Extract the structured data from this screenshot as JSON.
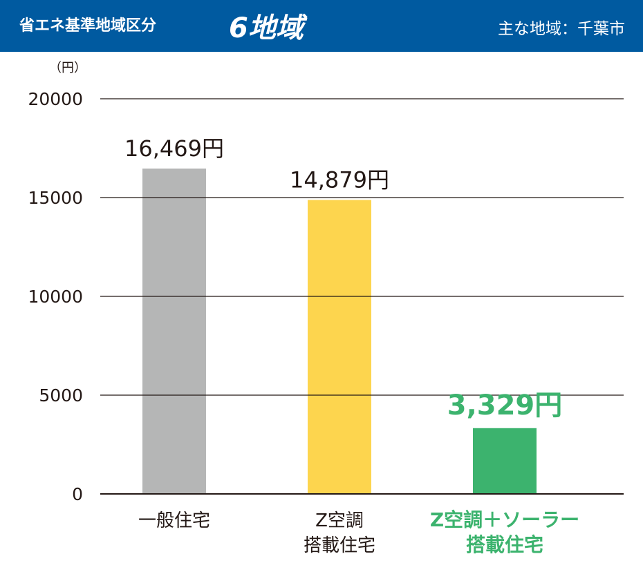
{
  "header": {
    "title": "省エネ基準地域区分",
    "region": "6地域",
    "area": "主な地域：千葉市"
  },
  "chart_data": {
    "type": "bar",
    "ylabel": "（円）",
    "ylim": [
      0,
      20000
    ],
    "yticks": [
      "0",
      "5000",
      "10000",
      "15000",
      "20000"
    ],
    "categories": [
      {
        "lines": [
          "一般住宅"
        ],
        "color": "#b5b6b6",
        "label_color": "#231815"
      },
      {
        "lines": [
          "Z空調",
          "搭載住宅"
        ],
        "color": "#fdd54e",
        "label_color": "#231815"
      },
      {
        "lines": [
          "Z空調＋ソーラー",
          "搭載住宅"
        ],
        "color": "#3cb36e",
        "label_color": "#3cb36e"
      }
    ],
    "values": [
      16469,
      14879,
      3329
    ],
    "value_labels": [
      "16,469円",
      "14,879円",
      "3,329円"
    ],
    "grid": true,
    "colors": {
      "axis": "#231815",
      "highlight": "#3cb36e"
    }
  }
}
